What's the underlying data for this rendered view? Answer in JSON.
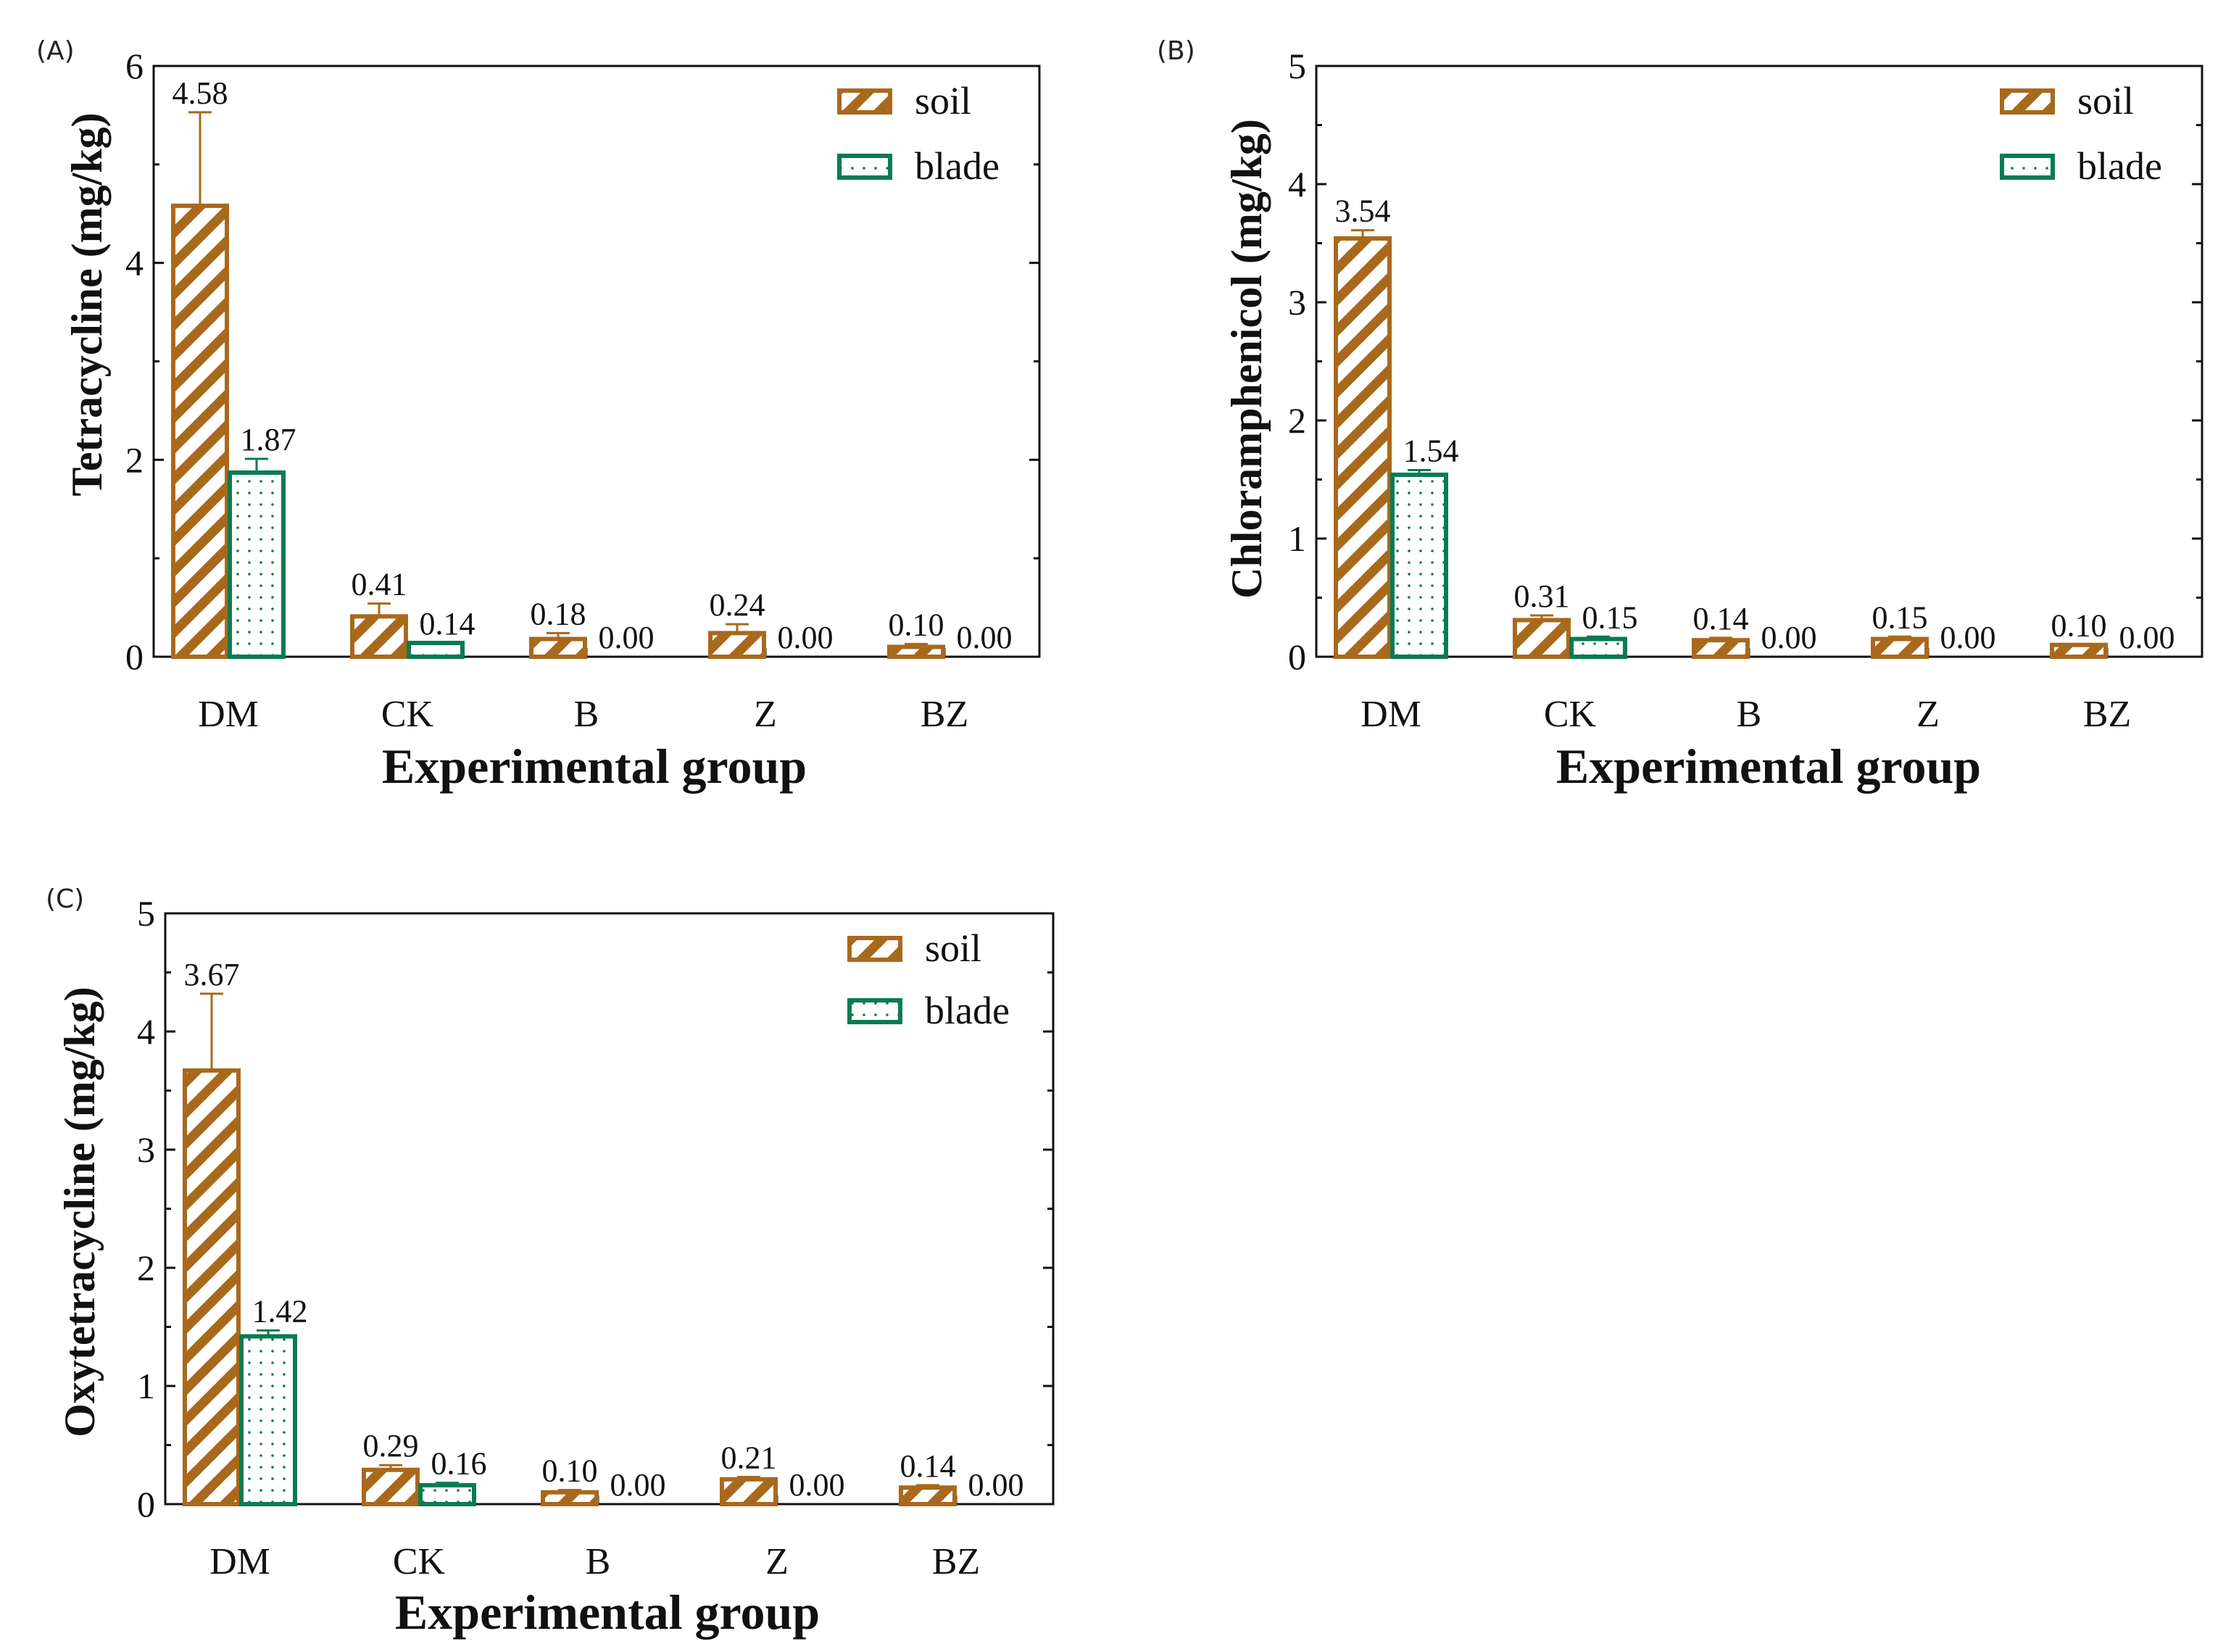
{
  "colors": {
    "soil": "#A8691C",
    "blade": "#0A7B52",
    "axis": "#111111"
  },
  "chart_data": [
    {
      "type": "bar",
      "panel": "(A)",
      "title": "",
      "xlabel": "Experimental group",
      "ylabel": "Tetracycline (mg/kg)",
      "categories": [
        "DM",
        "CK",
        "B",
        "Z",
        "BZ"
      ],
      "ylim": [
        0,
        6
      ],
      "yticks": [
        0,
        2,
        4,
        6
      ],
      "legend_position": "top-right",
      "series": [
        {
          "name": "soil",
          "pattern": "hatch",
          "values": [
            4.58,
            0.41,
            0.18,
            0.24,
            0.1
          ],
          "labels": [
            "4.58",
            "0.41",
            "0.18",
            "0.24",
            "0.10"
          ],
          "errors": [
            0.95,
            0.13,
            0.06,
            0.09,
            0.03
          ]
        },
        {
          "name": "blade",
          "pattern": "dots",
          "values": [
            1.87,
            0.14,
            0.0,
            0.0,
            0.0
          ],
          "labels": [
            "1.87",
            "0.14",
            "0.00",
            "0.00",
            "0.00"
          ],
          "errors": [
            0.14,
            0.0,
            0.0,
            0.0,
            0.0
          ]
        }
      ]
    },
    {
      "type": "bar",
      "panel": "(B)",
      "title": "",
      "xlabel": "Experimental group",
      "ylabel": "Chloramphenicol (mg/kg)",
      "categories": [
        "DM",
        "CK",
        "B",
        "Z",
        "BZ"
      ],
      "ylim": [
        0,
        5
      ],
      "yticks": [
        0,
        1,
        2,
        3,
        4,
        5
      ],
      "legend_position": "top-right",
      "series": [
        {
          "name": "soil",
          "pattern": "hatch",
          "values": [
            3.54,
            0.31,
            0.14,
            0.15,
            0.1
          ],
          "labels": [
            "3.54",
            "0.31",
            "0.14",
            "0.15",
            "0.10"
          ],
          "errors": [
            0.07,
            0.04,
            0.02,
            0.02,
            0.0
          ]
        },
        {
          "name": "blade",
          "pattern": "dots",
          "values": [
            1.54,
            0.15,
            0.0,
            0.0,
            0.0
          ],
          "labels": [
            "1.54",
            "0.15",
            "0.00",
            "0.00",
            "0.00"
          ],
          "errors": [
            0.04,
            0.02,
            0.0,
            0.0,
            0.0
          ]
        }
      ]
    },
    {
      "type": "bar",
      "panel": "(C)",
      "title": "",
      "xlabel": "Experimental group",
      "ylabel": "Oxytetracycline (mg/kg)",
      "categories": [
        "DM",
        "CK",
        "B",
        "Z",
        "BZ"
      ],
      "ylim": [
        0,
        5
      ],
      "yticks": [
        0,
        1,
        2,
        3,
        4,
        5
      ],
      "legend_position": "top-right",
      "series": [
        {
          "name": "soil",
          "pattern": "hatch",
          "values": [
            3.67,
            0.29,
            0.1,
            0.21,
            0.14
          ],
          "labels": [
            "3.67",
            "0.29",
            "0.10",
            "0.21",
            "0.14"
          ],
          "errors": [
            0.65,
            0.04,
            0.02,
            0.02,
            0.02
          ]
        },
        {
          "name": "blade",
          "pattern": "dots",
          "values": [
            1.42,
            0.16,
            0.0,
            0.0,
            0.0
          ],
          "labels": [
            "1.42",
            "0.16",
            "0.00",
            "0.00",
            "0.00"
          ],
          "errors": [
            0.05,
            0.02,
            0.0,
            0.0,
            0.0
          ]
        }
      ]
    }
  ]
}
